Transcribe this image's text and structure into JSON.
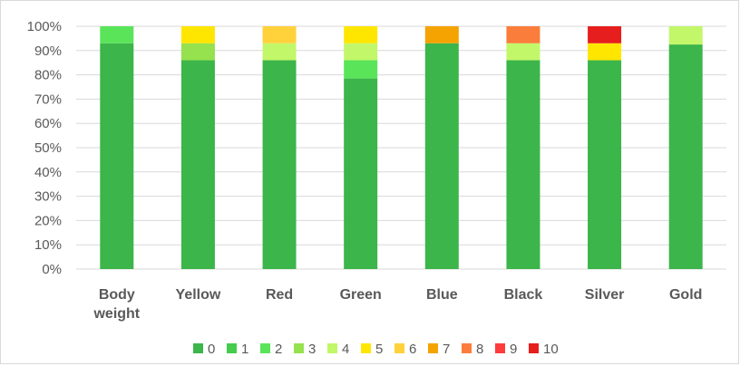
{
  "chart_data": {
    "type": "bar",
    "stacked": true,
    "percent": true,
    "categories": [
      [
        "Body",
        "weight"
      ],
      [
        "Yellow"
      ],
      [
        "Red"
      ],
      [
        "Green"
      ],
      [
        "Blue"
      ],
      [
        "Black"
      ],
      [
        "Silver"
      ],
      [
        "Gold"
      ]
    ],
    "y_ticks": [
      "0%",
      "10%",
      "20%",
      "30%",
      "40%",
      "50%",
      "60%",
      "70%",
      "80%",
      "90%",
      "100%"
    ],
    "ylim": [
      0,
      100
    ],
    "grid": true,
    "legend_position": "bottom",
    "series": [
      {
        "name": "0",
        "color": "#3cb54a",
        "values": [
          93,
          86,
          86,
          78.5,
          93,
          86,
          86,
          92.5
        ]
      },
      {
        "name": "1",
        "color": "#44cc4c",
        "values": [
          0,
          0,
          0,
          0,
          0,
          0,
          0,
          0
        ]
      },
      {
        "name": "2",
        "color": "#5ae45a",
        "values": [
          7,
          0,
          0,
          7.5,
          0,
          0,
          0,
          0
        ]
      },
      {
        "name": "3",
        "color": "#96e14e",
        "values": [
          0,
          7,
          0,
          0,
          0,
          0,
          0,
          0
        ]
      },
      {
        "name": "4",
        "color": "#c2f76a",
        "values": [
          0,
          0,
          7,
          7,
          0,
          7,
          0,
          7.5
        ]
      },
      {
        "name": "5",
        "color": "#ffe600",
        "values": [
          0,
          7,
          0,
          7,
          0,
          0,
          7,
          0
        ]
      },
      {
        "name": "6",
        "color": "#ffd23c",
        "values": [
          0,
          0,
          7,
          0,
          0,
          0,
          0,
          0
        ]
      },
      {
        "name": "7",
        "color": "#f5a300",
        "values": [
          0,
          0,
          0,
          0,
          7,
          0,
          0,
          0
        ]
      },
      {
        "name": "8",
        "color": "#fa7d3c",
        "values": [
          0,
          0,
          0,
          0,
          0,
          7,
          0,
          0
        ]
      },
      {
        "name": "9",
        "color": "#ff3c3c",
        "values": [
          0,
          0,
          0,
          0,
          0,
          0,
          0,
          0
        ]
      },
      {
        "name": "10",
        "color": "#e61e1e",
        "values": [
          0,
          0,
          0,
          0,
          0,
          0,
          7,
          0
        ]
      }
    ]
  }
}
